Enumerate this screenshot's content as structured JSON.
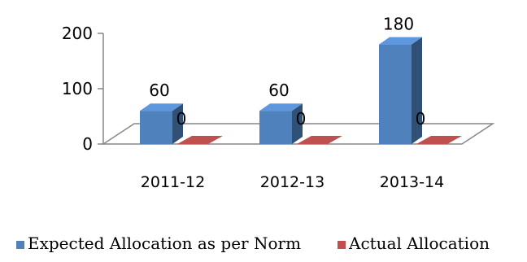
{
  "chart_data": {
    "type": "bar",
    "categories": [
      "2011-12",
      "2012-13",
      "2013-14"
    ],
    "series": [
      {
        "name": "Expected Allocation as per Norm",
        "values": [
          60,
          60,
          180
        ],
        "color": "#4F81BD"
      },
      {
        "name": "Actual Allocation",
        "values": [
          0,
          0,
          0
        ],
        "color": "#C0504D"
      }
    ],
    "yticks": [
      0,
      100,
      200
    ],
    "ylim": [
      0,
      200
    ],
    "grid": false,
    "legend_position": "bottom",
    "three_d": true
  }
}
